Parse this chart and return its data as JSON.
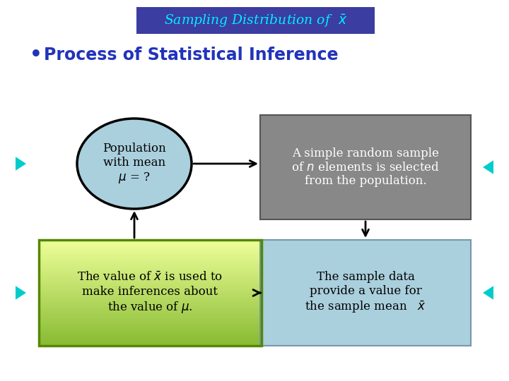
{
  "title_text": "Sampling Distribution of  $\\bar{x}$",
  "title_bg": "#3b3da0",
  "title_fg": "#00eeff",
  "bullet_text": "Process of Statistical Inference",
  "bullet_fg": "#2233bb",
  "circle_text": "Population\nwith mean\n$\\mu$ = ?",
  "circle_bg": "#aacfdd",
  "circle_edge": "#000000",
  "box_top_right_text": "A simple random sample\nof $n$ elements is selected\nfrom the population.",
  "box_top_right_bg": "#888888",
  "box_top_right_fg": "#ffffff",
  "box_bot_left_text": "The value of $\\bar{x}$ is used to\nmake inferences about\nthe value of $\\mu$.",
  "box_bot_left_bg_top": "#eeff99",
  "box_bot_left_bg_bot": "#88bb33",
  "box_bot_left_fg": "#000000",
  "box_bot_right_text": "The sample data\nprovide a value for\nthe sample mean   $\\bar{x}$",
  "box_bot_right_bg": "#aacfdd",
  "box_bot_right_fg": "#000000",
  "arrow_color": "#000000",
  "triangle_color": "#00cccc",
  "bg_color": "#ffffff"
}
